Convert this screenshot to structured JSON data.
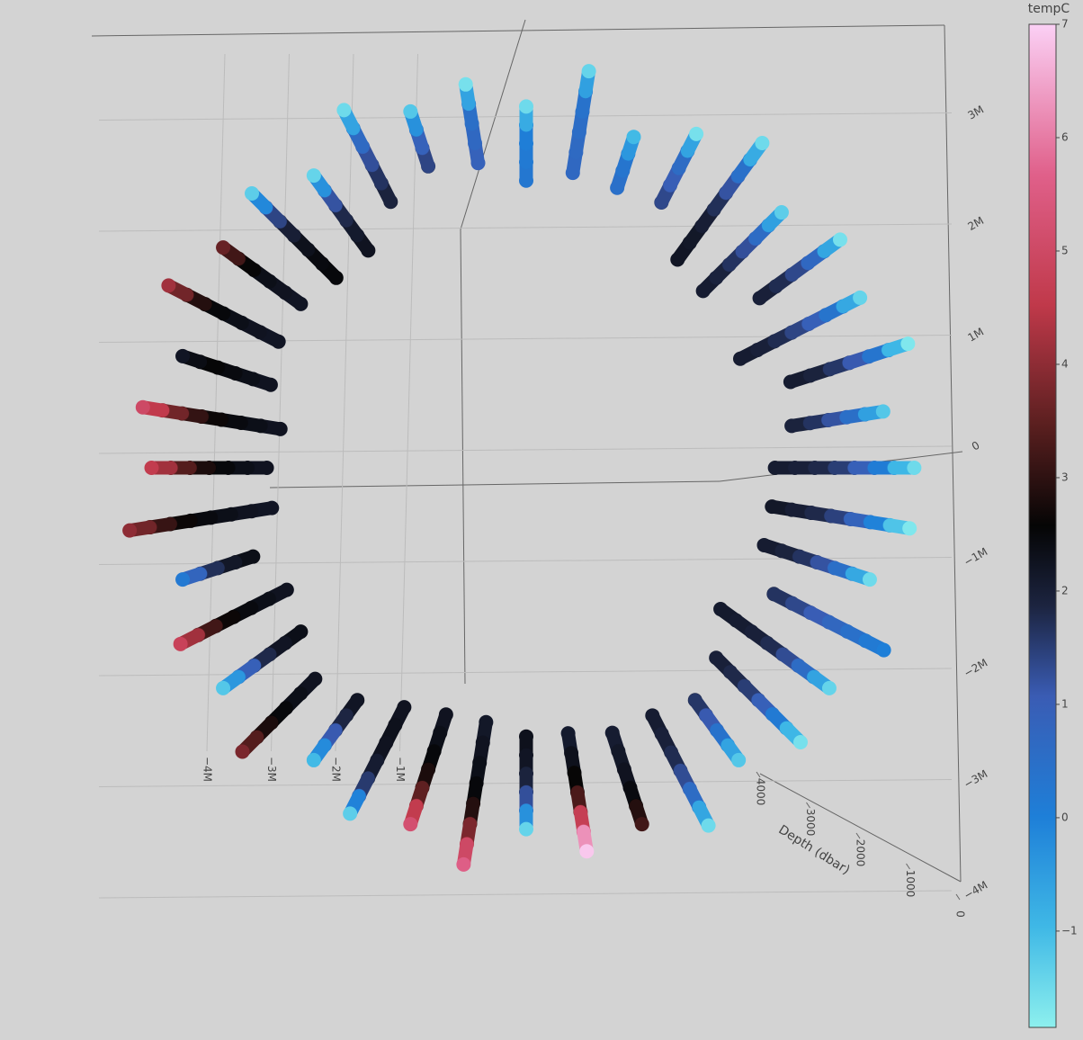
{
  "chart_data": {
    "type": "scatter3d",
    "depth": [
      0,
      500,
      1000,
      1500,
      2000,
      2500,
      3000,
      3500,
      4000
    ],
    "profiles": [
      {
        "x": 2900000,
        "y": 0,
        "tempC": [
          -1.5,
          -0.4,
          0.6,
          1.3,
          1.7,
          1.9,
          2.0,
          2.1,
          null
        ]
      },
      {
        "x": 2667600,
        "y": 421200,
        "tempC": [
          -1.2,
          0.1,
          0.9,
          1.5,
          1.8,
          2.0,
          null,
          null,
          null
        ]
      },
      {
        "x": 2853000,
        "y": 927000,
        "tempC": [
          -1.7,
          -0.2,
          0.8,
          1.4,
          1.8,
          2.0,
          2.1,
          null,
          null
        ]
      },
      {
        "x": 2494800,
        "y": 1271200,
        "tempC": [
          -1.4,
          0.0,
          0.7,
          1.2,
          1.6,
          1.9,
          2.0,
          2.1,
          null
        ]
      },
      {
        "x": 2346100,
        "y": 1705200,
        "tempC": [
          -1.6,
          0.3,
          1.1,
          1.6,
          1.9,
          2.0,
          null,
          null,
          null
        ]
      },
      {
        "x": 1908900,
        "y": 1908900,
        "tempC": [
          -1.3,
          0.2,
          1.0,
          1.5,
          1.8,
          2.0,
          2.1,
          null,
          null
        ]
      },
      {
        "x": 1764000,
        "y": 2427000,
        "tempC": [
          -1.5,
          0.0,
          0.9,
          1.5,
          1.9,
          2.1,
          2.2,
          2.2,
          null
        ]
      },
      {
        "x": 1271200,
        "y": 2494800,
        "tempC": [
          -1.6,
          0.4,
          0.8,
          1.2,
          1.5,
          null,
          null,
          null,
          null
        ]
      },
      {
        "x": 803400,
        "y": 2472600,
        "tempC": [
          -1.0,
          0.2,
          0.4,
          0.5,
          null,
          null,
          null,
          null,
          null
        ]
      },
      {
        "x": 468000,
        "y": 2964000,
        "tempC": [
          -1.4,
          0.3,
          0.5,
          0.6,
          0.7,
          0.7,
          null,
          null,
          null
        ]
      },
      {
        "x": 0,
        "y": 2700000,
        "tempC": [
          -1.5,
          0.0,
          0.1,
          0.2,
          0.3,
          null,
          null,
          null,
          null
        ]
      },
      {
        "x": -452400,
        "y": 2865200,
        "tempC": [
          -1.6,
          0.4,
          0.6,
          0.8,
          1.0,
          null,
          null,
          null,
          null
        ]
      },
      {
        "x": -865200,
        "y": 2662800,
        "tempC": [
          -1.2,
          0.6,
          1.2,
          1.6,
          null,
          null,
          null,
          null,
          null
        ]
      },
      {
        "x": -1362000,
        "y": 2673000,
        "tempC": [
          -1.5,
          0.3,
          1.0,
          1.5,
          1.8,
          2.0,
          null,
          null,
          null
        ]
      },
      {
        "x": -1587600,
        "y": 2184300,
        "tempC": [
          -1.4,
          0.8,
          1.6,
          2.0,
          2.2,
          2.3,
          null,
          null,
          null
        ]
      },
      {
        "x": -2050300,
        "y": 2050300,
        "tempC": [
          -1.3,
          1.0,
          1.8,
          2.2,
          2.4,
          2.5,
          2.5,
          null,
          null
        ]
      },
      {
        "x": -2265200,
        "y": 1646400,
        "tempC": [
          3.6,
          2.8,
          2.4,
          2.3,
          2.2,
          2.2,
          null,
          null,
          null
        ]
      },
      {
        "x": -2673000,
        "y": 1362000,
        "tempC": [
          4.2,
          3.2,
          2.6,
          2.4,
          2.3,
          2.2,
          2.2,
          null,
          null
        ]
      },
      {
        "x": -2567700,
        "y": 834300,
        "tempC": [
          2.2,
          2.6,
          2.5,
          2.4,
          2.3,
          2.2,
          null,
          null,
          null
        ]
      },
      {
        "x": -2865200,
        "y": 452400,
        "tempC": [
          5.0,
          4.1,
          3.3,
          2.8,
          2.5,
          2.4,
          2.3,
          2.2,
          null
        ]
      },
      {
        "x": -2800000,
        "y": 0,
        "tempC": [
          4.6,
          3.8,
          3.0,
          2.6,
          2.4,
          2.3,
          2.2,
          null,
          null
        ]
      },
      {
        "x": -2964000,
        "y": -468000,
        "tempC": [
          4.0,
          3.4,
          2.8,
          2.5,
          2.4,
          2.3,
          2.2,
          2.2,
          null
        ]
      },
      {
        "x": -2567700,
        "y": -834300,
        "tempC": [
          0.2,
          1.4,
          2.0,
          2.3,
          2.4,
          null,
          null,
          null,
          null
        ]
      },
      {
        "x": -2583900,
        "y": -1316600,
        "tempC": [
          4.8,
          3.6,
          2.8,
          2.5,
          2.4,
          2.3,
          2.2,
          null,
          null
        ]
      },
      {
        "x": -2265200,
        "y": -1646400,
        "tempC": [
          -1.2,
          0.4,
          1.5,
          2.1,
          2.3,
          2.4,
          null,
          null,
          null
        ]
      },
      {
        "x": -2121000,
        "y": -2121000,
        "tempC": [
          3.8,
          3.0,
          2.6,
          2.4,
          2.3,
          2.2,
          null,
          null,
          null
        ]
      },
      {
        "x": -1587600,
        "y": -2184300,
        "tempC": [
          -1.0,
          0.6,
          1.6,
          2.1,
          2.3,
          null,
          null,
          null,
          null
        ]
      },
      {
        "x": -1316600,
        "y": -2583900,
        "tempC": [
          -1.3,
          1.2,
          1.9,
          2.2,
          2.3,
          2.3,
          2.2,
          null,
          null
        ]
      },
      {
        "x": -865200,
        "y": -2662800,
        "tempC": [
          5.2,
          4.0,
          3.0,
          2.6,
          2.4,
          2.3,
          2.2,
          null,
          null
        ]
      },
      {
        "x": -468000,
        "y": -2964000,
        "tempC": [
          5.6,
          4.4,
          3.2,
          2.6,
          2.4,
          2.3,
          2.2,
          2.1,
          null
        ]
      },
      {
        "x": 0,
        "y": -2700000,
        "tempC": [
          -1.4,
          0.8,
          1.7,
          2.1,
          2.3,
          2.3,
          null,
          null,
          null
        ]
      },
      {
        "x": 452400,
        "y": -2865200,
        "tempC": [
          6.9,
          5.6,
          3.8,
          2.8,
          2.4,
          2.2,
          2.0,
          null,
          null
        ]
      },
      {
        "x": 865200,
        "y": -2662800,
        "tempC": [
          3.2,
          2.6,
          2.3,
          2.2,
          2.1,
          2.0,
          null,
          null,
          null
        ]
      },
      {
        "x": 1362000,
        "y": -2673000,
        "tempC": [
          -1.5,
          0.2,
          1.0,
          1.6,
          1.9,
          2.0,
          2.1,
          null,
          null
        ]
      },
      {
        "x": 1587600,
        "y": -2184300,
        "tempC": [
          -1.2,
          0.0,
          0.8,
          1.4,
          1.8,
          null,
          null,
          null,
          null
        ]
      },
      {
        "x": 2050300,
        "y": -2050300,
        "tempC": [
          -1.6,
          -0.3,
          0.6,
          1.3,
          1.7,
          1.9,
          2.0,
          null,
          null
        ]
      },
      {
        "x": 2265200,
        "y": -1646400,
        "tempC": [
          -1.4,
          0.2,
          1.0,
          1.6,
          1.9,
          2.0,
          2.1,
          2.1,
          null
        ]
      },
      {
        "x": 2673000,
        "y": -1362000,
        "tempC": [
          0.0,
          0.3,
          0.6,
          0.9,
          1.2,
          1.5,
          1.8,
          null,
          null
        ]
      },
      {
        "x": 2567700,
        "y": -834300,
        "tempC": [
          -1.5,
          0.1,
          0.9,
          1.5,
          1.8,
          2.0,
          2.1,
          null,
          null
        ]
      },
      {
        "x": 2865200,
        "y": -452400,
        "tempC": [
          -1.7,
          -0.6,
          0.5,
          1.2,
          1.7,
          1.9,
          2.1,
          2.2,
          null
        ]
      }
    ],
    "xaxis": {
      "lim": [
        -4000000,
        4000000
      ],
      "ticks": [
        {
          "value": -4000000,
          "label": "−4M"
        },
        {
          "value": -3000000,
          "label": "−3M"
        },
        {
          "value": -2000000,
          "label": "−2M"
        },
        {
          "value": -1000000,
          "label": "−1M"
        }
      ]
    },
    "yaxis": {
      "lim": [
        -4000000,
        4000000
      ],
      "ticks": [
        {
          "value": 3000000,
          "label": "3M"
        },
        {
          "value": 2000000,
          "label": "2M"
        },
        {
          "value": 1000000,
          "label": "1M"
        },
        0,
        {
          "value": -1000000,
          "label": "−1M"
        },
        {
          "value": -2000000,
          "label": "−2M"
        },
        {
          "value": -3000000,
          "label": "−3M"
        },
        {
          "value": -4000000,
          "label": "−4M"
        }
      ]
    },
    "zaxis": {
      "title": "Depth (dbar)",
      "lim": [
        0,
        4000
      ],
      "ticks": [
        4000,
        3000,
        2000,
        1000,
        0
      ]
    },
    "colorbar": {
      "title": "tempC",
      "lim": [
        -1.85,
        7
      ],
      "ticks": [
        {
          "value": -1,
          "label": "−1"
        },
        0,
        1,
        2,
        3,
        4,
        5,
        6,
        7
      ],
      "colorscale": [
        [
          0,
          "#8df0ee"
        ],
        [
          0.1,
          "#3fb8e6"
        ],
        [
          0.21,
          "#1e7fd8"
        ],
        [
          0.33,
          "#3a5cb4"
        ],
        [
          0.42,
          "#1c2440"
        ],
        [
          0.5,
          "#050505"
        ],
        [
          0.6,
          "#5a1f1f"
        ],
        [
          0.72,
          "#c0394a"
        ],
        [
          0.85,
          "#e0608a"
        ],
        [
          1,
          "#fbd0f5"
        ]
      ]
    }
  }
}
